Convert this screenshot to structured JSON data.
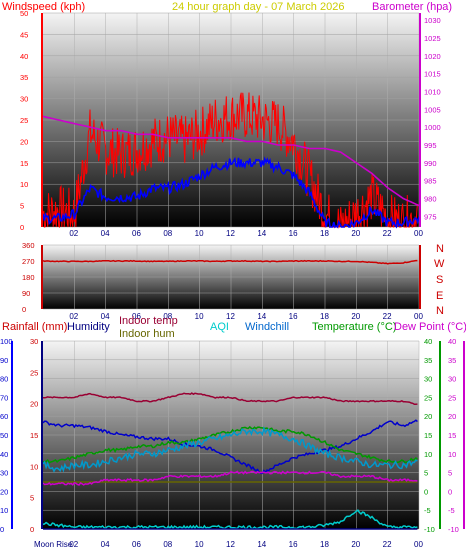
{
  "title": "24 hour graph day - 07 March 2026",
  "colors": {
    "wind": "#ff0000",
    "gust_avg": "#0000ff",
    "baro": "#cc00cc",
    "dir": "#cc0000",
    "rain": "#000080",
    "humidity": "#0000cc",
    "indoor_temp": "#990033",
    "indoor_hum": "#666600",
    "aqi": "#00cccc",
    "windchill": "#0099cc",
    "temp": "#009900",
    "dew": "#cc00cc"
  },
  "x_ticks": [
    "02",
    "04",
    "06",
    "08",
    "10",
    "12",
    "14",
    "16",
    "18",
    "20",
    "22",
    "00"
  ],
  "panel1": {
    "left_label": "Windspeed (kph)",
    "right_label": "Barometer (hpa)",
    "left_ticks": [
      "0",
      "5",
      "10",
      "15",
      "20",
      "25",
      "30",
      "35",
      "40",
      "45",
      "50"
    ],
    "right_ticks": [
      "975",
      "980",
      "985",
      "990",
      "995",
      "1000",
      "1005",
      "1010",
      "1015",
      "1020",
      "1025",
      "1030"
    ]
  },
  "panel2": {
    "left_ticks": [
      "0",
      "90",
      "180",
      "270",
      "360"
    ],
    "compass": [
      "N",
      "W",
      "S",
      "E",
      "N"
    ]
  },
  "panel3": {
    "labels": {
      "rain": "Rainfall (mm)",
      "humidity": "Humidity",
      "indoor_temp": "Indoor temp",
      "indoor_hum": "Indoor hum",
      "aqi": "AQI",
      "windchill": "Windchill",
      "temp": "Temperature (°C)",
      "dew": "Dew Point (°C)"
    },
    "hum_ticks": [
      "0",
      "10",
      "20",
      "30",
      "40",
      "50",
      "60",
      "70",
      "80",
      "90",
      "100"
    ],
    "rain_ticks": [
      "0",
      "5",
      "10",
      "15",
      "20",
      "25",
      "30"
    ],
    "temp_ticks": [
      "-10",
      "-5",
      "0",
      "5",
      "10",
      "15",
      "20",
      "25",
      "30",
      "35",
      "40"
    ],
    "dew_ticks": [
      "-10",
      "-5",
      "0",
      "5",
      "10",
      "15",
      "20",
      "25",
      "30",
      "35",
      "40"
    ],
    "moonrise": "Moon Rise"
  },
  "chart_data": [
    {
      "type": "line",
      "title": "24 hour graph day - 07 March 2026",
      "x": [
        0,
        1,
        2,
        3,
        4,
        5,
        6,
        7,
        8,
        9,
        10,
        11,
        12,
        13,
        14,
        15,
        16,
        17,
        18,
        19,
        20,
        21,
        22,
        23,
        24
      ],
      "ylabel": "Windspeed (kph)",
      "ylim": [
        0,
        50
      ],
      "y2label": "Barometer (hpa)",
      "y2lim": [
        972,
        1032
      ],
      "series": [
        {
          "name": "Windspeed (kph)",
          "axis": "y",
          "values": [
            3,
            4,
            3,
            22,
            18,
            17,
            18,
            20,
            21,
            20,
            22,
            25,
            26,
            26,
            25,
            24,
            20,
            12,
            3,
            0,
            3,
            7,
            2,
            1,
            3
          ]
        },
        {
          "name": "Barometer (hpa)",
          "axis": "y2",
          "values": [
            1003,
            1002,
            1001,
            1000,
            999,
            999,
            998,
            998,
            997,
            997,
            997,
            997,
            997,
            996,
            996,
            995,
            995,
            994,
            994,
            993,
            990,
            987,
            983,
            980,
            978
          ]
        }
      ],
      "extra_series": [
        {
          "values": [
            2,
            2,
            3,
            9,
            7,
            7,
            7,
            9,
            9,
            10,
            12,
            14,
            15,
            15,
            15,
            14,
            12,
            8,
            1,
            0,
            1,
            4,
            1,
            1,
            2
          ]
        }
      ]
    },
    {
      "type": "line",
      "x": [
        0,
        1,
        2,
        3,
        4,
        5,
        6,
        7,
        8,
        9,
        10,
        11,
        12,
        13,
        14,
        15,
        16,
        17,
        18,
        19,
        20,
        21,
        22,
        23,
        24
      ],
      "ylim": [
        0,
        360
      ],
      "series": [
        {
          "values": [
            270,
            268,
            268,
            268,
            270,
            270,
            270,
            268,
            268,
            270,
            270,
            268,
            270,
            270,
            268,
            268,
            270,
            270,
            270,
            268,
            268,
            262,
            255,
            260,
            275
          ]
        }
      ]
    },
    {
      "type": "line",
      "x": [
        0,
        1,
        2,
        3,
        4,
        5,
        6,
        7,
        8,
        9,
        10,
        11,
        12,
        13,
        14,
        15,
        16,
        17,
        18,
        19,
        20,
        21,
        22,
        23,
        24
      ],
      "ylim": [
        0,
        100
      ],
      "y2lim": [
        -10,
        40
      ],
      "series": [
        {
          "name": "Humidity",
          "axis": "hum",
          "values": [
            57,
            55,
            55,
            54,
            52,
            50,
            49,
            48,
            48,
            45,
            44,
            42,
            38,
            34,
            30,
            34,
            38,
            40,
            42,
            44,
            48,
            52,
            57,
            55,
            58
          ]
        },
        {
          "name": "Indoor temp",
          "axis": "temp",
          "values": [
            25,
            25,
            25,
            26,
            25,
            25,
            24,
            24,
            25,
            26,
            26,
            25,
            25,
            24,
            24,
            24,
            25,
            25,
            25,
            24,
            24,
            24,
            24,
            24,
            23
          ]
        },
        {
          "name": "Indoor hum",
          "axis": "hum",
          "values": [
            25,
            25,
            25,
            25,
            25,
            25,
            25,
            25,
            25,
            25,
            25,
            25,
            25,
            25,
            25,
            25,
            25,
            25,
            25,
            25,
            25,
            25,
            25,
            25,
            25
          ]
        },
        {
          "name": "Temperature (°C)",
          "axis": "temp",
          "values": [
            8,
            8,
            9,
            10,
            11,
            11,
            12,
            12,
            13,
            13,
            14,
            15,
            16,
            17,
            17,
            16,
            16,
            15,
            13,
            11,
            10,
            9,
            8,
            8,
            9
          ]
        },
        {
          "name": "Windchill",
          "axis": "temp",
          "values": [
            7,
            6,
            7,
            7,
            8,
            9,
            10,
            10,
            11,
            12,
            13,
            14,
            15,
            16,
            16,
            15,
            14,
            12,
            10,
            9,
            8,
            7,
            7,
            7,
            8
          ]
        },
        {
          "name": "Dew Point (°C)",
          "axis": "temp",
          "values": [
            2,
            2,
            2,
            2,
            3,
            3,
            3,
            3,
            4,
            4,
            4,
            4,
            5,
            5,
            5,
            5,
            5,
            5,
            5,
            4,
            4,
            4,
            3,
            3,
            3
          ]
        },
        {
          "name": "AQI",
          "axis": "hum",
          "values": [
            3,
            2,
            1,
            1,
            1,
            1,
            1,
            1,
            1,
            1,
            1,
            1,
            1,
            1,
            1,
            1,
            1,
            1,
            2,
            4,
            10,
            6,
            1,
            1,
            1
          ]
        },
        {
          "name": "Rainfall (mm)",
          "axis": "rain",
          "values": [
            0,
            0,
            0,
            0,
            0,
            0,
            0,
            0,
            0,
            0,
            0,
            0,
            0,
            0,
            0,
            0,
            0,
            0,
            0,
            0,
            0,
            0,
            0,
            0,
            0
          ]
        }
      ]
    }
  ]
}
